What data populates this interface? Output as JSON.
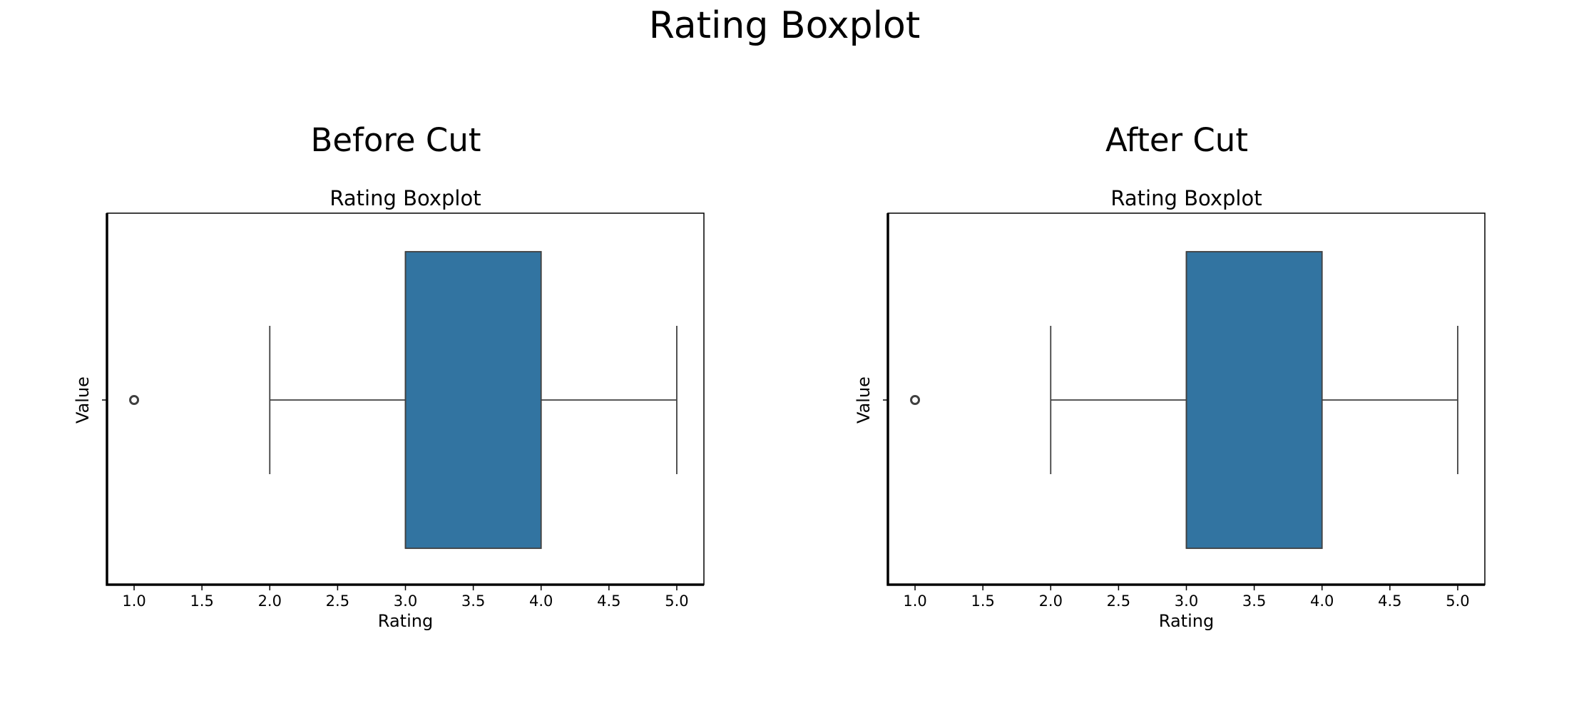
{
  "figure_title": "Rating Boxplot",
  "chart_data": [
    {
      "type": "boxplot",
      "panel_title": "Before Cut",
      "title": "Rating Boxplot",
      "xlabel": "Rating",
      "ylabel": "Value",
      "xlim": [
        0.8,
        5.2
      ],
      "xticks": [
        1.0,
        1.5,
        2.0,
        2.5,
        3.0,
        3.5,
        4.0,
        4.5,
        5.0
      ],
      "xtick_labels": [
        "1.0",
        "1.5",
        "2.0",
        "2.5",
        "3.0",
        "3.5",
        "4.0",
        "4.5",
        "5.0"
      ],
      "box": {
        "whisker_low": 2.0,
        "q1": 3.0,
        "median": 3.0,
        "q3": 4.0,
        "whisker_high": 5.0,
        "outliers": [
          1.0
        ]
      },
      "box_color": "#3274a1",
      "grid": false
    },
    {
      "type": "boxplot",
      "panel_title": "After Cut",
      "title": "Rating Boxplot",
      "xlabel": "Rating",
      "ylabel": "Value",
      "xlim": [
        0.8,
        5.2
      ],
      "xticks": [
        1.0,
        1.5,
        2.0,
        2.5,
        3.0,
        3.5,
        4.0,
        4.5,
        5.0
      ],
      "xtick_labels": [
        "1.0",
        "1.5",
        "2.0",
        "2.5",
        "3.0",
        "3.5",
        "4.0",
        "4.5",
        "5.0"
      ],
      "box": {
        "whisker_low": 2.0,
        "q1": 3.0,
        "median": 3.0,
        "q3": 4.0,
        "whisker_high": 5.0,
        "outliers": [
          1.0
        ]
      },
      "box_color": "#3274a1",
      "grid": false
    }
  ]
}
